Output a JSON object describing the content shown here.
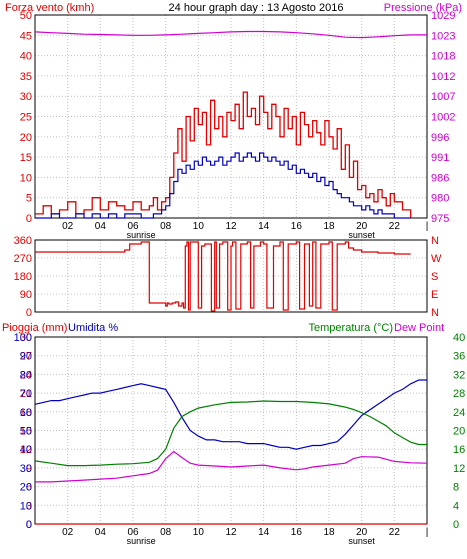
{
  "title": "24 hour graph day : 13 Agosto 2016",
  "colors": {
    "background": "#ffffff",
    "border": "#000000",
    "grid": "#c0c0c0",
    "wind": "#e00000",
    "gust_mean": "#0000c0",
    "pressure": "#d000d0",
    "direction": "#e00000",
    "rain": "#e00000",
    "humidity": "#0000c0",
    "temperature": "#008000",
    "dewpoint": "#d000d0"
  },
  "x_axis": {
    "ticks": [
      "02",
      "04",
      "06",
      "08",
      "10",
      "12",
      "14",
      "16",
      "18",
      "20",
      "22",
      "|"
    ],
    "sunrise_label": "sunrise",
    "sunset_label": "sunset"
  },
  "chart_data": [
    {
      "type": "line",
      "id": "wind",
      "left_label": "Forza vento (kmh)",
      "right_label": "Pressione (kPa)",
      "left_ticks": [
        "0",
        "5",
        "10",
        "15",
        "20",
        "25",
        "30",
        "35",
        "40",
        "45",
        "50"
      ],
      "right_ticks": [
        "975",
        "980",
        "986",
        "991",
        "996",
        "1002",
        "1007",
        "1012",
        "1018",
        "1023",
        "1029"
      ],
      "ylim": [
        0,
        50
      ],
      "right_ylim": [
        975,
        1029
      ],
      "x_range": [
        0,
        24
      ],
      "series": [
        {
          "role": "gust",
          "x": [
            0,
            0.5,
            1,
            1.5,
            2,
            2.5,
            3,
            3.5,
            4,
            4.5,
            5,
            5.5,
            6,
            6.5,
            7,
            7.25,
            7.5,
            7.75,
            8,
            8.25,
            8.5,
            8.75,
            9,
            9.25,
            9.5,
            9.75,
            10,
            10.25,
            10.5,
            10.75,
            11,
            11.25,
            11.5,
            11.75,
            12,
            12.25,
            12.5,
            12.75,
            13,
            13.25,
            13.5,
            13.75,
            14,
            14.25,
            14.5,
            14.75,
            15,
            15.25,
            15.5,
            15.75,
            16,
            16.25,
            16.5,
            16.75,
            17,
            17.25,
            17.5,
            17.75,
            18,
            18.25,
            18.5,
            18.75,
            19,
            19.25,
            19.5,
            19.75,
            20,
            20.25,
            20.5,
            20.75,
            21,
            21.25,
            21.5,
            21.75,
            22,
            22.5,
            23
          ],
          "values": [
            1,
            3,
            1,
            2,
            4,
            1,
            2,
            5,
            2,
            4,
            3,
            2,
            4,
            2,
            3,
            5,
            2,
            4,
            5,
            10,
            16,
            22,
            14,
            25,
            19,
            27,
            23,
            26,
            18,
            29,
            22,
            25,
            20,
            26,
            24,
            28,
            22,
            31,
            25,
            27,
            23,
            30,
            26,
            22,
            28,
            25,
            20,
            27,
            22,
            25,
            18,
            26,
            23,
            20,
            24,
            21,
            18,
            24,
            20,
            17,
            22,
            12,
            18,
            10,
            14,
            7,
            8,
            5,
            6,
            4,
            7,
            5,
            3,
            6,
            4,
            2,
            0
          ],
          "color_key": "wind"
        },
        {
          "role": "mean",
          "x": [
            0,
            0.5,
            1,
            1.5,
            2,
            2.5,
            3,
            3.5,
            4,
            4.5,
            5,
            5.5,
            6,
            6.5,
            7,
            7.25,
            7.5,
            7.75,
            8,
            8.25,
            8.5,
            8.75,
            9,
            9.25,
            9.5,
            9.75,
            10,
            10.25,
            10.5,
            10.75,
            11,
            11.25,
            11.5,
            11.75,
            12,
            12.25,
            12.5,
            12.75,
            13,
            13.25,
            13.5,
            13.75,
            14,
            14.25,
            14.5,
            14.75,
            15,
            15.25,
            15.5,
            15.75,
            16,
            16.25,
            16.5,
            16.75,
            17,
            17.25,
            17.5,
            17.75,
            18,
            18.25,
            18.5,
            18.75,
            19,
            19.25,
            19.5,
            19.75,
            20,
            20.25,
            20.5,
            20.75,
            21,
            21.25,
            21.5,
            21.75,
            22,
            22.5,
            23
          ],
          "values": [
            0,
            0,
            1,
            0,
            0,
            1,
            0,
            1,
            0,
            1,
            0,
            1,
            1,
            0,
            0,
            1,
            1,
            2,
            3,
            6,
            9,
            12,
            11,
            13,
            12,
            14,
            13,
            15,
            14,
            13,
            14,
            15,
            13,
            14,
            15,
            16,
            14,
            15,
            16,
            15,
            14,
            16,
            15,
            14,
            15,
            14,
            13,
            14,
            12,
            13,
            11,
            12,
            11,
            10,
            11,
            9,
            10,
            8,
            9,
            7,
            6,
            5,
            5,
            4,
            3,
            3,
            2,
            3,
            2,
            1,
            2,
            1,
            1,
            1,
            0,
            0,
            0
          ],
          "color_key": "gust_mean"
        },
        {
          "role": "pressure",
          "x": [
            0,
            1,
            2,
            3,
            4,
            5,
            6,
            7,
            8,
            9,
            10,
            11,
            12,
            13,
            14,
            15,
            16,
            17,
            18,
            19,
            20,
            21,
            22,
            23,
            24
          ],
          "values": [
            1024.5,
            1024.3,
            1024.1,
            1023.9,
            1023.8,
            1023.7,
            1023.6,
            1023.6,
            1023.7,
            1023.9,
            1024.1,
            1024.3,
            1024.5,
            1024.6,
            1024.6,
            1024.5,
            1024.3,
            1024.0,
            1023.6,
            1023.1,
            1023.0,
            1023.2,
            1023.5,
            1023.7,
            1023.7
          ],
          "color_key": "pressure",
          "axis": "right"
        }
      ]
    },
    {
      "type": "line",
      "id": "direction",
      "left_ticks": [
        "0",
        "90",
        "180",
        "270",
        "360"
      ],
      "right_ticks": [
        "N",
        "E",
        "S",
        "W",
        "N"
      ],
      "ylim": [
        0,
        360
      ],
      "x_range": [
        0,
        24
      ],
      "series": [
        {
          "x": [
            0,
            1,
            2,
            3,
            4,
            5,
            5.5,
            5.8,
            6.5,
            6.8,
            7,
            7,
            7.5,
            8,
            8.1,
            8.2,
            8.4,
            8.6,
            8.8,
            9,
            9.1,
            9.2,
            9.3,
            9.4,
            9.5,
            10,
            10.2,
            10.4,
            10.8,
            11,
            11.1,
            11.3,
            11.5,
            11.8,
            12,
            12.1,
            12.3,
            12.6,
            13,
            13.2,
            13.4,
            13.8,
            14,
            14.2,
            14.6,
            15,
            15.2,
            15.5,
            16,
            16.2,
            16.5,
            16.8,
            17,
            17.2,
            17.5,
            18,
            18.2,
            18.5,
            19,
            19.2,
            19.5,
            20,
            21,
            22,
            23
          ],
          "values": [
            300,
            300,
            300,
            300,
            300,
            300,
            310,
            340,
            350,
            350,
            350,
            45,
            45,
            30,
            45,
            40,
            45,
            50,
            30,
            45,
            20,
            330,
            350,
            10,
            350,
            20,
            330,
            340,
            5,
            350,
            20,
            340,
            350,
            10,
            330,
            350,
            15,
            340,
            350,
            20,
            330,
            350,
            340,
            20,
            330,
            350,
            10,
            340,
            350,
            15,
            340,
            30,
            350,
            20,
            340,
            350,
            10,
            340,
            350,
            320,
            310,
            300,
            295,
            290,
            290
          ],
          "color_key": "direction"
        }
      ]
    },
    {
      "type": "line",
      "id": "weather",
      "left_label_rain": "Pioggia (mm)",
      "left_label_humidity": "Umidita %",
      "right_label_temp": "Temperatura (°C)",
      "right_label_dew": "Dew Point",
      "rain_ticks": [
        "0",
        "3",
        "6",
        "9",
        "12",
        "15",
        "18",
        "21",
        "24",
        "27",
        "30"
      ],
      "humidity_ticks": [
        "0",
        "10",
        "20",
        "30",
        "40",
        "50",
        "60",
        "70",
        "80",
        "90",
        "100"
      ],
      "temp_ticks": [
        "0",
        "4",
        "8",
        "12",
        "16",
        "20",
        "24",
        "28",
        "32",
        "36",
        "40"
      ],
      "ylim": [
        0,
        100
      ],
      "temp_ylim": [
        0,
        40
      ],
      "x_range": [
        0,
        24
      ],
      "series": [
        {
          "role": "humidity",
          "x": [
            0,
            0.5,
            1,
            1.5,
            2,
            2.5,
            3,
            3.5,
            4,
            4.5,
            5,
            5.5,
            6,
            6.5,
            7,
            7.5,
            8,
            8.5,
            9,
            9.5,
            10,
            10.5,
            11,
            11.5,
            12,
            12.5,
            13,
            13.5,
            14,
            14.5,
            15,
            15.5,
            16,
            16.5,
            17,
            17.5,
            18,
            18.5,
            19,
            19.5,
            20,
            20.5,
            21,
            21.5,
            22,
            22.5,
            23,
            23.5,
            24
          ],
          "values": [
            64,
            65,
            66,
            66,
            67,
            68,
            69,
            70,
            70,
            71,
            72,
            73,
            74,
            75,
            74,
            73,
            72,
            65,
            57,
            50,
            47,
            45,
            45,
            44,
            44,
            44,
            43,
            43,
            43,
            42,
            41,
            41,
            40,
            41,
            42,
            42,
            43,
            44,
            48,
            53,
            58,
            61,
            64,
            67,
            70,
            72,
            75,
            77,
            77
          ],
          "color_key": "humidity"
        },
        {
          "role": "temperature",
          "x": [
            0,
            1,
            2,
            3,
            4,
            5,
            6,
            7,
            7.5,
            8,
            8.5,
            9,
            9.5,
            10,
            11,
            12,
            13,
            14,
            15,
            16,
            17,
            18,
            19,
            19.5,
            20,
            20.5,
            21,
            21.5,
            22,
            22.5,
            23,
            23.5,
            24
          ],
          "values": [
            13.5,
            13.0,
            12.5,
            12.5,
            12.6,
            12.8,
            12.9,
            13.2,
            14.0,
            16.0,
            20.5,
            23.0,
            24.0,
            24.8,
            25.5,
            26.0,
            26.1,
            26.3,
            26.2,
            26.2,
            26.0,
            25.7,
            25.0,
            24.5,
            23.8,
            23.0,
            22.0,
            21.0,
            19.5,
            18.5,
            17.5,
            17.0,
            17.0
          ],
          "color_key": "temperature"
        },
        {
          "role": "dewpoint",
          "x": [
            0,
            1,
            2,
            3,
            4,
            5,
            6,
            7,
            7.5,
            8,
            8.5,
            9,
            9.5,
            10,
            11,
            12,
            13,
            14,
            15,
            16,
            16.5,
            17,
            18,
            19,
            19.5,
            20,
            21,
            22,
            23,
            24
          ],
          "values": [
            9.0,
            9.0,
            9.2,
            9.4,
            9.6,
            9.8,
            10.3,
            10.8,
            11.5,
            14.0,
            15.5,
            14.2,
            13.0,
            12.6,
            12.4,
            12.2,
            12.4,
            12.6,
            12.0,
            11.6,
            11.8,
            12.2,
            12.6,
            13.0,
            14.0,
            14.4,
            14.3,
            13.4,
            13.1,
            13.0
          ],
          "color_key": "dewpoint"
        },
        {
          "role": "rain",
          "x": [
            0,
            24
          ],
          "values": [
            0,
            0
          ],
          "color_key": "rain"
        }
      ]
    }
  ]
}
